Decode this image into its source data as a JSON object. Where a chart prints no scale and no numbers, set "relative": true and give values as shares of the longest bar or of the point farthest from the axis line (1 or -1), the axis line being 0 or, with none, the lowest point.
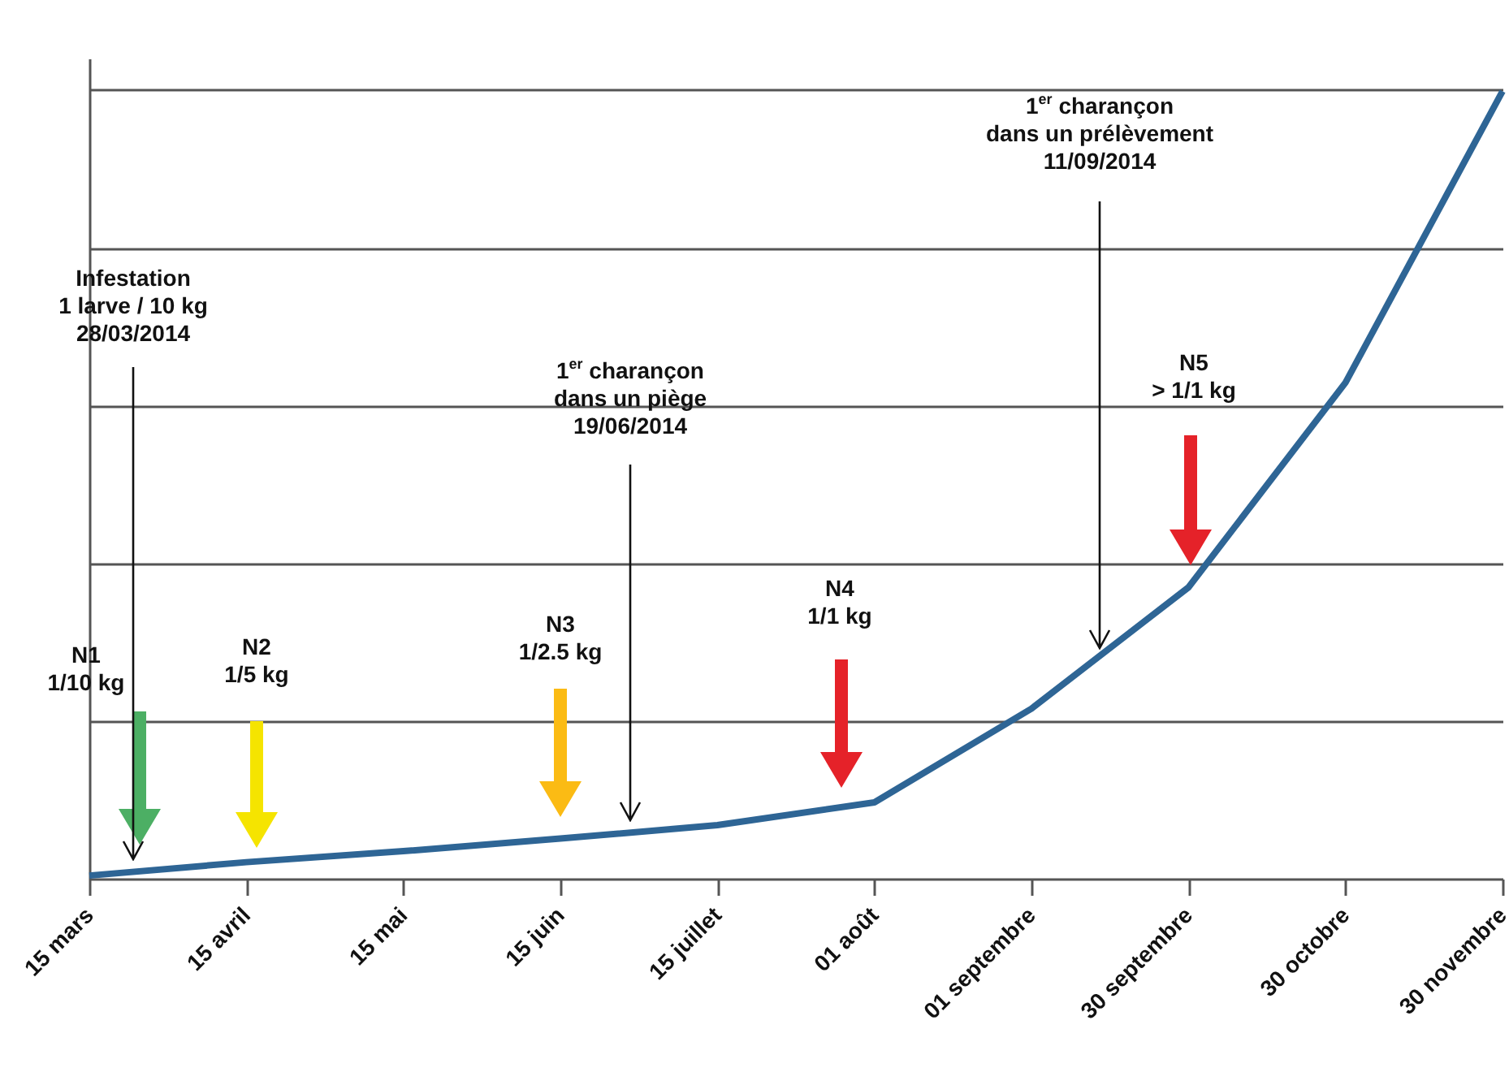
{
  "chart_data": {
    "type": "line",
    "relative": true,
    "grid": "y",
    "marker": "none",
    "line_style": "solid",
    "categories": [
      "15 mars",
      "15 avril",
      "15 mai",
      "15 juin",
      "15 juillet",
      "01 août",
      "01 septembre",
      "30 septembre",
      "30 octobre",
      "30 novembre"
    ],
    "series": [
      {
        "color": "#2e6595",
        "values": [
          0.004,
          0.021,
          0.035,
          0.051,
          0.068,
          0.097,
          0.216,
          0.37,
          0.63,
          1
        ]
      }
    ],
    "annotations": [
      "N1\n1/10 kg",
      "N2\n1/5 kg",
      "N3\n1/2.5 kg",
      "N4\n1/1 kg",
      "N5\n> 1/1 kg",
      "Infestation\n1 larve / 10 kg\n28/03/2014",
      "1$^{er}$ charançon\ndans un piège\n19/06/2014",
      "1$^{er}$ charançon\ndans un prélèvement\n11/09/2014"
    ]
  }
}
